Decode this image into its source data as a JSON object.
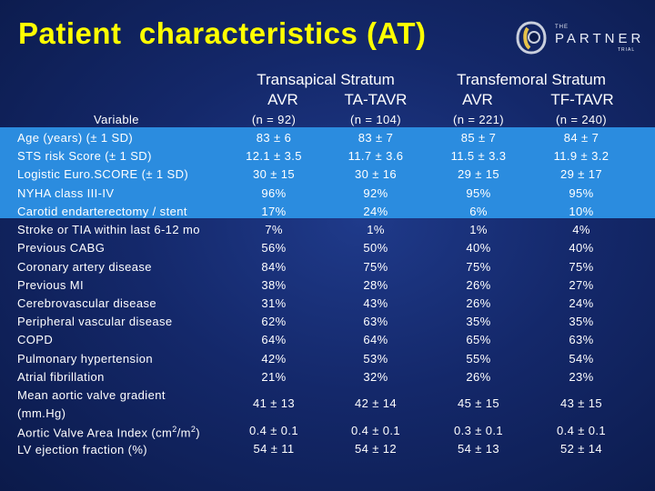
{
  "title": "Patient  characteristics (AT)",
  "logo": {
    "the": "THE",
    "name": "PARTNER",
    "trial": "TRIAL"
  },
  "groups": {
    "transapical": "Transapical Stratum",
    "transfemoral": "Transfemoral Stratum"
  },
  "arms": [
    "AVR",
    "TA-TAVR",
    "AVR",
    "TF-TAVR"
  ],
  "header_row": {
    "label": "Variable",
    "values": [
      "(n =  92)",
      "(n = 104)",
      "(n = 221)",
      "(n = 240)"
    ]
  },
  "rows": [
    {
      "label": "Age (years) (± 1 SD)",
      "values": [
        "83 ± 6",
        "83 ± 7",
        "85 ± 7",
        "84 ± 7"
      ]
    },
    {
      "label": "STS risk Score (± 1 SD)",
      "values": [
        "12.1 ± 3.5",
        "11.7 ± 3.6",
        "11.5 ± 3.3",
        "11.9 ± 3.2"
      ]
    },
    {
      "label": "Logistic Euro.SCORE  (± 1 SD)",
      "values": [
        "30 ± 15",
        "30 ± 16",
        "29 ± 15",
        "29 ± 17"
      ]
    },
    {
      "label": "NYHA class III-IV",
      "values": [
        "96%",
        "92%",
        "95%",
        "95%"
      ]
    },
    {
      "label": "Carotid endarterectomy / stent",
      "values": [
        "17%",
        "24%",
        "6%",
        "10%"
      ]
    },
    {
      "label": "Stroke or TIA within last 6-12 mo",
      "values": [
        "7%",
        "1%",
        "1%",
        "4%"
      ]
    },
    {
      "label": "Previous CABG",
      "values": [
        "56%",
        "50%",
        "40%",
        "40%"
      ]
    },
    {
      "label": "Coronary artery disease",
      "values": [
        "84%",
        "75%",
        "75%",
        "75%"
      ]
    },
    {
      "label": "Previous MI",
      "values": [
        "38%",
        "28%",
        "26%",
        "27%"
      ]
    },
    {
      "label": "Cerebrovascular disease",
      "values": [
        "31%",
        "43%",
        "26%",
        "24%"
      ]
    },
    {
      "label": "Peripheral vascular disease",
      "values": [
        "62%",
        "63%",
        "35%",
        "35%"
      ]
    },
    {
      "label": "COPD",
      "values": [
        "64%",
        "64%",
        "65%",
        "63%"
      ]
    },
    {
      "label": "Pulmonary hypertension",
      "values": [
        "42%",
        "53%",
        "55%",
        "54%"
      ]
    },
    {
      "label": "Atrial fibrillation",
      "values": [
        "21%",
        "32%",
        "26%",
        "23%"
      ]
    },
    {
      "label": "Mean aortic valve gradient",
      "label2": "(mm.Hg)",
      "values": [
        "41 ± 13",
        "42 ± 14",
        "45 ± 15",
        "43 ± 15"
      ]
    },
    {
      "label": "Aortic Valve Area Index (cm",
      "label_sup1": "2",
      "label_mid": "/m",
      "label_sup2": "2",
      "label_end": ")",
      "values": [
        "0.4 ± 0.1",
        "0.4 ± 0.1",
        "0.3 ± 0.1",
        "0.4 ± 0.1"
      ]
    },
    {
      "label": "LV ejection fraction  (%)",
      "values": [
        "54 ± 11",
        "54 ± 12",
        "54 ± 13",
        "52 ± 14"
      ]
    }
  ]
}
